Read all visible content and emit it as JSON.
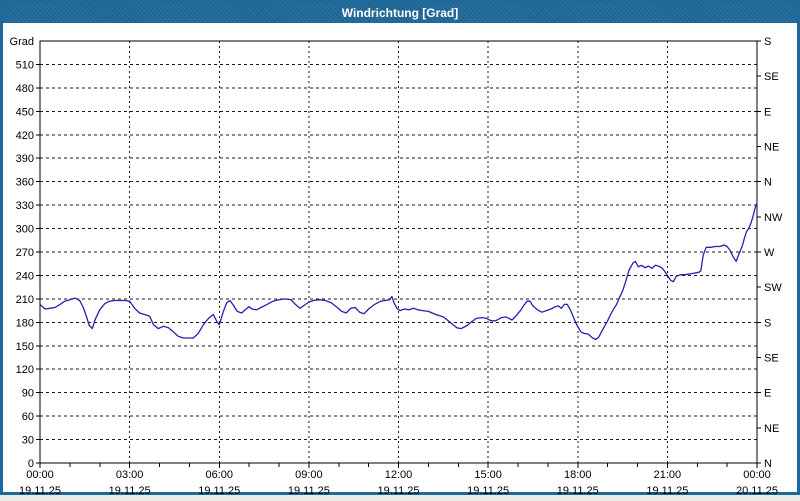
{
  "window": {
    "title": "Windrichtung [Grad]"
  },
  "colors": {
    "titlebar_bg": "#20699a",
    "window_border": "#1e699b",
    "plot_bg": "#ffffff",
    "grid": "#1a1a1a",
    "axis": "#000000",
    "series_line": "#2222b2"
  },
  "chart_data": {
    "type": "line",
    "title": "Windrichtung [Grad]",
    "legend": "none",
    "grid": "dashed",
    "ylim": [
      0,
      540
    ],
    "xlim_hours": [
      0,
      24
    ],
    "y_axis": {
      "unit_label": "Grad",
      "min": 0,
      "max": 540,
      "tick_step": 30,
      "ticks": [
        {
          "value": 510,
          "label": "510"
        },
        {
          "value": 480,
          "label": "480"
        },
        {
          "value": 450,
          "label": "450"
        },
        {
          "value": 420,
          "label": "420"
        },
        {
          "value": 390,
          "label": "390"
        },
        {
          "value": 360,
          "label": "360"
        },
        {
          "value": 330,
          "label": "330"
        },
        {
          "value": 300,
          "label": "300"
        },
        {
          "value": 270,
          "label": "270"
        },
        {
          "value": 240,
          "label": "240"
        },
        {
          "value": 210,
          "label": "210"
        },
        {
          "value": 180,
          "label": "180"
        },
        {
          "value": 150,
          "label": "150"
        },
        {
          "value": 120,
          "label": "120"
        },
        {
          "value": 90,
          "label": "90"
        },
        {
          "value": 60,
          "label": "60"
        },
        {
          "value": 30,
          "label": "30"
        },
        {
          "value": 0,
          "label": "0"
        }
      ]
    },
    "compass_axis": {
      "position": "right",
      "tick_step": 45,
      "ticks": [
        {
          "value": 540,
          "label": "S"
        },
        {
          "value": 495,
          "label": "SE"
        },
        {
          "value": 450,
          "label": "E"
        },
        {
          "value": 405,
          "label": "NE"
        },
        {
          "value": 360,
          "label": "N"
        },
        {
          "value": 315,
          "label": "NW"
        },
        {
          "value": 270,
          "label": "W"
        },
        {
          "value": 225,
          "label": "SW"
        },
        {
          "value": 180,
          "label": "S"
        },
        {
          "value": 135,
          "label": "SE"
        },
        {
          "value": 90,
          "label": "E"
        },
        {
          "value": 45,
          "label": "NE"
        },
        {
          "value": 0,
          "label": "N"
        }
      ]
    },
    "x_axis": {
      "tick_interval_hours": 3,
      "minor_tick_hours": 1,
      "ticks": [
        {
          "hour": 0,
          "time": "00:00",
          "date": "19.11.25"
        },
        {
          "hour": 3,
          "time": "03:00",
          "date": "19.11.25"
        },
        {
          "hour": 6,
          "time": "06:00",
          "date": "19.11.25"
        },
        {
          "hour": 9,
          "time": "09:00",
          "date": "19.11.25"
        },
        {
          "hour": 12,
          "time": "12:00",
          "date": "19.11.25"
        },
        {
          "hour": 15,
          "time": "15:00",
          "date": "19.11.25"
        },
        {
          "hour": 18,
          "time": "18:00",
          "date": "19.11.25"
        },
        {
          "hour": 21,
          "time": "21:00",
          "date": "19.11.25"
        },
        {
          "hour": 24,
          "time": "00:00",
          "date": "20.11.25"
        }
      ]
    },
    "series": [
      {
        "name": "Windrichtung [Grad]",
        "color": "#2222b2",
        "points": [
          [
            0,
            203
          ],
          [
            0.17,
            197
          ],
          [
            0.33,
            198
          ],
          [
            0.5,
            199
          ],
          [
            0.67,
            203
          ],
          [
            0.83,
            207
          ],
          [
            1,
            209
          ],
          [
            1.17,
            211
          ],
          [
            1.33,
            208
          ],
          [
            1.45,
            199
          ],
          [
            1.55,
            188
          ],
          [
            1.65,
            176
          ],
          [
            1.75,
            172
          ],
          [
            1.85,
            184
          ],
          [
            2,
            196
          ],
          [
            2.17,
            204
          ],
          [
            2.33,
            207
          ],
          [
            2.5,
            208
          ],
          [
            2.67,
            208
          ],
          [
            2.83,
            208
          ],
          [
            3,
            207
          ],
          [
            3.17,
            198
          ],
          [
            3.33,
            192
          ],
          [
            3.5,
            190
          ],
          [
            3.67,
            188
          ],
          [
            3.8,
            177
          ],
          [
            3.96,
            172
          ],
          [
            4.13,
            175
          ],
          [
            4.3,
            173
          ],
          [
            4.46,
            168
          ],
          [
            4.63,
            162
          ],
          [
            4.8,
            160
          ],
          [
            4.97,
            160
          ],
          [
            5.13,
            160
          ],
          [
            5.3,
            166
          ],
          [
            5.47,
            177
          ],
          [
            5.64,
            185
          ],
          [
            5.8,
            190
          ],
          [
            5.92,
            181
          ],
          [
            6,
            177
          ],
          [
            6.14,
            194
          ],
          [
            6.25,
            205
          ],
          [
            6.36,
            208
          ],
          [
            6.47,
            202
          ],
          [
            6.6,
            194
          ],
          [
            6.75,
            192
          ],
          [
            6.9,
            197
          ],
          [
            7,
            200
          ],
          [
            7.1,
            197
          ],
          [
            7.25,
            196
          ],
          [
            7.4,
            199
          ],
          [
            7.6,
            203
          ],
          [
            7.8,
            207
          ],
          [
            8,
            209
          ],
          [
            8.2,
            210
          ],
          [
            8.4,
            209
          ],
          [
            8.55,
            203
          ],
          [
            8.7,
            198
          ],
          [
            8.85,
            202
          ],
          [
            9,
            206
          ],
          [
            9.15,
            208
          ],
          [
            9.35,
            209
          ],
          [
            9.55,
            208
          ],
          [
            9.75,
            205
          ],
          [
            9.95,
            199
          ],
          [
            10.1,
            194
          ],
          [
            10.25,
            192
          ],
          [
            10.4,
            198
          ],
          [
            10.55,
            199
          ],
          [
            10.7,
            193
          ],
          [
            10.85,
            191
          ],
          [
            11,
            197
          ],
          [
            11.2,
            203
          ],
          [
            11.4,
            207
          ],
          [
            11.55,
            208
          ],
          [
            11.7,
            209
          ],
          [
            11.78,
            213
          ],
          [
            11.85,
            205
          ],
          [
            11.95,
            198
          ],
          [
            12.05,
            195
          ],
          [
            12.2,
            197
          ],
          [
            12.35,
            196
          ],
          [
            12.5,
            198
          ],
          [
            12.65,
            196
          ],
          [
            12.8,
            195
          ],
          [
            13,
            194
          ],
          [
            13.25,
            190
          ],
          [
            13.5,
            187
          ],
          [
            13.7,
            181
          ],
          [
            13.95,
            173
          ],
          [
            14.1,
            172
          ],
          [
            14.3,
            176
          ],
          [
            14.45,
            181
          ],
          [
            14.6,
            185
          ],
          [
            14.8,
            186
          ],
          [
            14.95,
            185
          ],
          [
            15.1,
            182
          ],
          [
            15.25,
            182
          ],
          [
            15.45,
            186
          ],
          [
            15.6,
            187
          ],
          [
            15.8,
            183
          ],
          [
            15.95,
            189
          ],
          [
            16.1,
            196
          ],
          [
            16.2,
            202
          ],
          [
            16.3,
            207
          ],
          [
            16.4,
            207
          ],
          [
            16.5,
            201
          ],
          [
            16.65,
            196
          ],
          [
            16.8,
            193
          ],
          [
            16.95,
            195
          ],
          [
            17.1,
            197
          ],
          [
            17.25,
            200
          ],
          [
            17.35,
            201
          ],
          [
            17.45,
            198
          ],
          [
            17.55,
            203
          ],
          [
            17.65,
            203
          ],
          [
            17.75,
            196
          ],
          [
            17.85,
            187
          ],
          [
            17.95,
            178
          ],
          [
            18.1,
            168
          ],
          [
            18.2,
            166
          ],
          [
            18.35,
            165
          ],
          [
            18.5,
            160
          ],
          [
            18.6,
            158
          ],
          [
            18.7,
            161
          ],
          [
            18.8,
            168
          ],
          [
            18.9,
            175
          ],
          [
            19,
            182
          ],
          [
            19.1,
            190
          ],
          [
            19.2,
            197
          ],
          [
            19.3,
            203
          ],
          [
            19.4,
            212
          ],
          [
            19.5,
            220
          ],
          [
            19.6,
            232
          ],
          [
            19.72,
            247
          ],
          [
            19.85,
            256
          ],
          [
            19.93,
            258
          ],
          [
            20.03,
            251
          ],
          [
            20.13,
            253
          ],
          [
            20.25,
            250
          ],
          [
            20.37,
            252
          ],
          [
            20.48,
            249
          ],
          [
            20.6,
            253
          ],
          [
            20.7,
            252
          ],
          [
            20.8,
            250
          ],
          [
            20.9,
            246
          ],
          [
            21,
            240
          ],
          [
            21.1,
            234
          ],
          [
            21.2,
            232
          ],
          [
            21.3,
            239
          ],
          [
            21.45,
            241
          ],
          [
            21.6,
            241
          ],
          [
            21.75,
            242
          ],
          [
            21.9,
            243
          ],
          [
            22.05,
            244
          ],
          [
            22.12,
            246
          ],
          [
            22.2,
            266
          ],
          [
            22.3,
            276
          ],
          [
            22.45,
            276
          ],
          [
            22.6,
            277
          ],
          [
            22.75,
            277
          ],
          [
            22.9,
            279
          ],
          [
            23,
            277
          ],
          [
            23.1,
            272
          ],
          [
            23.2,
            264
          ],
          [
            23.3,
            258
          ],
          [
            23.4,
            268
          ],
          [
            23.5,
            277
          ],
          [
            23.58,
            288
          ],
          [
            23.65,
            296
          ],
          [
            23.72,
            300
          ],
          [
            23.8,
            307
          ],
          [
            23.87,
            316
          ],
          [
            23.94,
            327
          ],
          [
            24,
            333
          ]
        ]
      }
    ]
  }
}
